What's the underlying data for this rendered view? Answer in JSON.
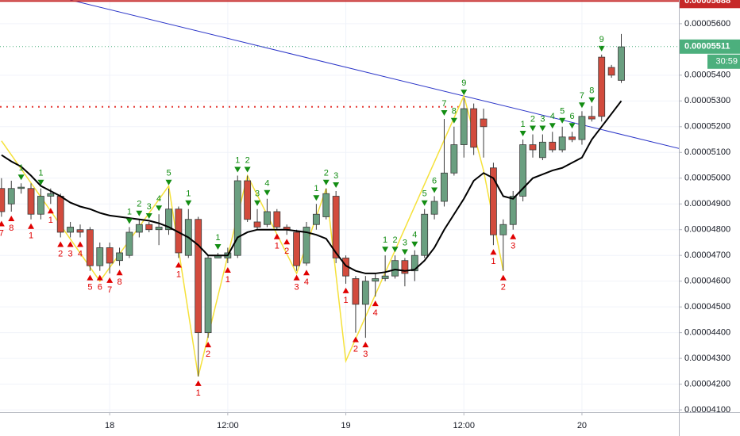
{
  "chart_data": {
    "type": "candlestick",
    "x": [
      0,
      1,
      2,
      3,
      4,
      5,
      6,
      7,
      8,
      9,
      10,
      11,
      12,
      13,
      14,
      15,
      16,
      17,
      18,
      19,
      20,
      21,
      22,
      23,
      24,
      25,
      26,
      27,
      28,
      29,
      30,
      31,
      32,
      33,
      34,
      35,
      36,
      37,
      38,
      39,
      40,
      41,
      42,
      43,
      44,
      45,
      46,
      47,
      48,
      49,
      50,
      51,
      52,
      53,
      54,
      55,
      56,
      57,
      58,
      59,
      60,
      61,
      62,
      63
    ],
    "open": [
      4.96e-05,
      4.9e-05,
      4.96e-05,
      4.96e-05,
      4.86e-05,
      4.93e-05,
      4.93e-05,
      4.79e-05,
      4.8e-05,
      4.8e-05,
      4.66e-05,
      4.73e-05,
      4.68e-05,
      4.7e-05,
      4.79e-05,
      4.82e-05,
      4.8e-05,
      4.8e-05,
      4.88e-05,
      4.7e-05,
      4.84e-05,
      4.4e-05,
      4.69e-05,
      4.69e-05,
      4.7e-05,
      4.99e-05,
      4.83e-05,
      4.82e-05,
      4.87e-05,
      4.81e-05,
      4.79e-05,
      4.67e-05,
      4.82e-05,
      4.85e-05,
      4.93e-05,
      4.69e-05,
      4.61e-05,
      4.51e-05,
      4.6e-05,
      4.61e-05,
      4.62e-05,
      4.68e-05,
      4.64e-05,
      4.7e-05,
      4.86e-05,
      4.91e-05,
      5.02e-05,
      5.13e-05,
      5.27e-05,
      5.23e-05,
      5.04e-05,
      4.78e-05,
      4.82e-05,
      4.93e-05,
      5.13e-05,
      5.08e-05,
      5.14e-05,
      5.11e-05,
      5.16e-05,
      5.15e-05,
      5.24e-05,
      5.47e-05,
      5.43e-05,
      5.38e-05
    ],
    "close": [
      4.87e-05,
      4.96e-05,
      4.965e-05,
      4.86e-05,
      4.93e-05,
      4.94e-05,
      4.79e-05,
      4.81e-05,
      4.79e-05,
      4.66e-05,
      4.73e-05,
      4.67e-05,
      4.71e-05,
      4.79e-05,
      4.82e-05,
      4.8e-05,
      4.81e-05,
      4.88e-05,
      4.71e-05,
      4.84e-05,
      4.4e-05,
      4.69e-05,
      4.7e-05,
      4.71e-05,
      4.99e-05,
      4.84e-05,
      4.81e-05,
      4.87e-05,
      4.81e-05,
      4.8e-05,
      4.66e-05,
      4.81e-05,
      4.86e-05,
      4.94e-05,
      4.69e-05,
      4.62e-05,
      4.51e-05,
      4.6e-05,
      4.61e-05,
      4.62e-05,
      4.68e-05,
      4.63e-05,
      4.7e-05,
      4.86e-05,
      4.91e-05,
      5.02e-05,
      5.13e-05,
      5.27e-05,
      5.12e-05,
      5.2e-05,
      4.78e-05,
      4.82e-05,
      4.93e-05,
      5.13e-05,
      5.11e-05,
      5.14e-05,
      5.11e-05,
      5.16e-05,
      5.15e-05,
      5.24e-05,
      5.23e-05,
      5.24e-05,
      5.4e-05,
      5.51e-05
    ],
    "high": [
      5e-05,
      4.99e-05,
      4.98e-05,
      4.98e-05,
      4.96e-05,
      4.96e-05,
      4.94e-05,
      4.83e-05,
      4.82e-05,
      4.81e-05,
      4.75e-05,
      4.75e-05,
      4.73e-05,
      4.81e-05,
      4.84e-05,
      4.83e-05,
      4.86e-05,
      4.96e-05,
      4.89e-05,
      4.88e-05,
      4.85e-05,
      4.7e-05,
      4.71e-05,
      4.73e-05,
      5.01e-05,
      5.01e-05,
      4.88e-05,
      4.92e-05,
      4.88e-05,
      4.82e-05,
      4.8e-05,
      4.83e-05,
      4.9e-05,
      4.96e-05,
      4.95e-05,
      4.7e-05,
      4.62e-05,
      4.62e-05,
      4.63e-05,
      4.7e-05,
      4.7e-05,
      4.69e-05,
      4.72e-05,
      4.88e-05,
      4.93e-05,
      5.23e-05,
      5.2e-05,
      5.31e-05,
      5.29e-05,
      5.27e-05,
      5.06e-05,
      4.84e-05,
      4.95e-05,
      5.15e-05,
      5.17e-05,
      5.17e-05,
      5.18e-05,
      5.2e-05,
      5.18e-05,
      5.26e-05,
      5.28e-05,
      5.48e-05,
      5.44e-05,
      5.56e-05
    ],
    "low": [
      4.85e-05,
      4.87e-05,
      4.94e-05,
      4.84e-05,
      4.84e-05,
      4.9e-05,
      4.77e-05,
      4.77e-05,
      4.77e-05,
      4.64e-05,
      4.64e-05,
      4.63e-05,
      4.66e-05,
      4.69e-05,
      4.77e-05,
      4.79e-05,
      4.74e-05,
      4.78e-05,
      4.69e-05,
      4.69e-05,
      4.23e-05,
      4.38e-05,
      4.69e-05,
      4.67e-05,
      4.69e-05,
      4.83e-05,
      4.8e-05,
      4.81e-05,
      4.8e-05,
      4.78e-05,
      4.64e-05,
      4.66e-05,
      4.8e-05,
      4.84e-05,
      4.67e-05,
      4.59e-05,
      4.4e-05,
      4.38e-05,
      4.54e-05,
      4.6e-05,
      4.61e-05,
      4.58e-05,
      4.6e-05,
      4.69e-05,
      4.84e-05,
      4.89e-05,
      5.01e-05,
      5.08e-05,
      5.09e-05,
      5.08e-05,
      4.74e-05,
      4.64e-05,
      4.8e-05,
      4.91e-05,
      5.08e-05,
      5.07e-05,
      5.1e-05,
      5.1e-05,
      5.14e-05,
      5.13e-05,
      5.22e-05,
      5.22e-05,
      5.39e-05,
      5.37e-05
    ],
    "up_color": "#6a9f80",
    "down_color": "#d24b3d",
    "moving_average": {
      "color": "#000000",
      "values": [
        5.09e-05,
        5.065e-05,
        5.045e-05,
        5.01e-05,
        4.97e-05,
        4.95e-05,
        4.93e-05,
        4.905e-05,
        4.89e-05,
        4.88e-05,
        4.865e-05,
        4.855e-05,
        4.85e-05,
        4.845e-05,
        4.84e-05,
        4.835e-05,
        4.825e-05,
        4.81e-05,
        4.79e-05,
        4.77e-05,
        4.74e-05,
        4.7e-05,
        4.7e-05,
        4.7e-05,
        4.77e-05,
        4.79e-05,
        4.8e-05,
        4.8e-05,
        4.8e-05,
        4.8e-05,
        4.795e-05,
        4.79e-05,
        4.78e-05,
        4.765e-05,
        4.71e-05,
        4.66e-05,
        4.64e-05,
        4.63e-05,
        4.63e-05,
        4.635e-05,
        4.645e-05,
        4.64e-05,
        4.645e-05,
        4.68e-05,
        4.73e-05,
        4.8e-05,
        4.86e-05,
        4.92e-05,
        4.99e-05,
        5.02e-05,
        5e-05,
        4.93e-05,
        4.92e-05,
        4.96e-05,
        5e-05,
        5.015e-05,
        5.03e-05,
        5.04e-05,
        5.06e-05,
        5.08e-05,
        5.15e-05,
        5.2e-05,
        5.25e-05,
        5.3e-05
      ]
    },
    "zigzag": {
      "color": "#f5e13a",
      "x": [
        0,
        10,
        17,
        20,
        25,
        30,
        33,
        35,
        47,
        49,
        51
      ],
      "values": [
        5.145e-05,
        4.6e-05,
        4.97e-05,
        4.23e-05,
        5.01e-05,
        4.63e-05,
        4.96e-05,
        4.29e-05,
        5.32e-05,
        5.03e-05,
        4.64e-05
      ]
    },
    "trendline": {
      "color": "#2b35c8",
      "x": [
        7,
        69
      ],
      "values": [
        5.692e-05,
        5.114e-05
      ]
    },
    "resistance_level": {
      "color": "#e53935",
      "value": 5.277e-05
    },
    "annotations_above": [
      {
        "candle": 2,
        "text": "1"
      },
      {
        "candle": 4,
        "text": "1"
      },
      {
        "candle": 13,
        "text": "1"
      },
      {
        "candle": 14,
        "text": "2"
      },
      {
        "candle": 15,
        "text": "3"
      },
      {
        "candle": 16,
        "text": "4"
      },
      {
        "candle": 17,
        "text": "5"
      },
      {
        "candle": 19,
        "text": "1"
      },
      {
        "candle": 22,
        "text": "1"
      },
      {
        "candle": 24,
        "text": "1"
      },
      {
        "candle": 25,
        "text": "2"
      },
      {
        "candle": 26,
        "text": "3"
      },
      {
        "candle": 27,
        "text": "4"
      },
      {
        "candle": 32,
        "text": "1"
      },
      {
        "candle": 33,
        "text": "2"
      },
      {
        "candle": 34,
        "text": "3"
      },
      {
        "candle": 39,
        "text": "1"
      },
      {
        "candle": 40,
        "text": "2"
      },
      {
        "candle": 41,
        "text": "3"
      },
      {
        "candle": 42,
        "text": "4"
      },
      {
        "candle": 43,
        "text": "5"
      },
      {
        "candle": 44,
        "text": "6"
      },
      {
        "candle": 45,
        "text": "7"
      },
      {
        "candle": 46,
        "text": "8"
      },
      {
        "candle": 47,
        "text": "9"
      },
      {
        "candle": 53,
        "text": "1"
      },
      {
        "candle": 54,
        "text": "2"
      },
      {
        "candle": 55,
        "text": "3"
      },
      {
        "candle": 56,
        "text": "4"
      },
      {
        "candle": 57,
        "text": "5"
      },
      {
        "candle": 58,
        "text": "6"
      },
      {
        "candle": 59,
        "text": "7"
      },
      {
        "candle": 60,
        "text": "8"
      },
      {
        "candle": 61,
        "text": "9"
      }
    ],
    "annotations_below": [
      {
        "candle": 0,
        "text": "7"
      },
      {
        "candle": 1,
        "text": "8"
      },
      {
        "candle": 3,
        "text": "1"
      },
      {
        "candle": 5,
        "text": "1"
      },
      {
        "candle": 6,
        "text": "2"
      },
      {
        "candle": 7,
        "text": "3"
      },
      {
        "candle": 8,
        "text": "4"
      },
      {
        "candle": 9,
        "text": "5"
      },
      {
        "candle": 10,
        "text": "6"
      },
      {
        "candle": 11,
        "text": "7"
      },
      {
        "candle": 12,
        "text": "8"
      },
      {
        "candle": 18,
        "text": "1"
      },
      {
        "candle": 20,
        "text": "1"
      },
      {
        "candle": 21,
        "text": "2"
      },
      {
        "candle": 23,
        "text": "1"
      },
      {
        "candle": 28,
        "text": "1"
      },
      {
        "candle": 29,
        "text": "2"
      },
      {
        "candle": 30,
        "text": "3"
      },
      {
        "candle": 31,
        "text": "4"
      },
      {
        "candle": 35,
        "text": "1"
      },
      {
        "candle": 36,
        "text": "2"
      },
      {
        "candle": 37,
        "text": "3"
      },
      {
        "candle": 38,
        "text": "4"
      },
      {
        "candle": 50,
        "text": "1"
      },
      {
        "candle": 51,
        "text": "2"
      },
      {
        "candle": 52,
        "text": "3"
      }
    ],
    "price_tags": [
      {
        "value": 5.688e-05,
        "label": "0.00005688",
        "color": "#c62828"
      },
      {
        "value": 5.511e-05,
        "label": "0.00005511",
        "color": "#4caf7d"
      }
    ],
    "countdown": "30:59",
    "xlim": [
      -0.15,
      68.85
    ],
    "ylim": [
      4.091e-05,
      5.692e-05
    ],
    "xticks": [
      {
        "value": 11,
        "label": "18"
      },
      {
        "value": 23,
        "label": "12:00"
      },
      {
        "value": 35,
        "label": "19"
      },
      {
        "value": 47,
        "label": "12:00"
      },
      {
        "value": 59,
        "label": "20"
      }
    ],
    "yticks": [
      {
        "value": 5.6e-05,
        "label": "0.00005600"
      },
      {
        "value": 5.4e-05,
        "label": "0.00005400"
      },
      {
        "value": 5.3e-05,
        "label": "0.00005300"
      },
      {
        "value": 5.2e-05,
        "label": "0.00005200"
      },
      {
        "value": 5.1e-05,
        "label": "0.00005100"
      },
      {
        "value": 5e-05,
        "label": "0.00005000"
      },
      {
        "value": 4.9e-05,
        "label": "0.00004900"
      },
      {
        "value": 4.8e-05,
        "label": "0.00004800"
      },
      {
        "value": 4.7e-05,
        "label": "0.00004700"
      },
      {
        "value": 4.6e-05,
        "label": "0.00004600"
      },
      {
        "value": 4.5e-05,
        "label": "0.00004500"
      },
      {
        "value": 4.4e-05,
        "label": "0.00004400"
      },
      {
        "value": 4.3e-05,
        "label": "0.00004300"
      },
      {
        "value": 4.2e-05,
        "label": "0.00004200"
      },
      {
        "value": 4.1e-05,
        "label": "0.00004100"
      }
    ],
    "grid": true
  }
}
